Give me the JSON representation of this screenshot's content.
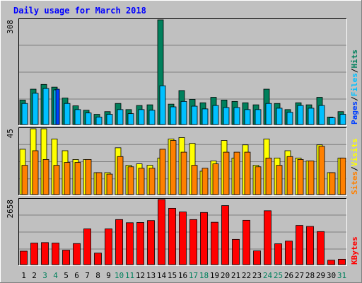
{
  "title": "Daily usage for March 2018",
  "colors": {
    "background": "#C0C0C0",
    "border_dark": "#808080",
    "border_light": "#FFFFFF",
    "plot_bg": "#C0C0C0",
    "title": "#0000FF",
    "hits": "#00805C",
    "files": "#00C0FF",
    "pages": "#0040FF",
    "visits": "#FFFF00",
    "sites": "#FF8000",
    "kbytes": "#FF0000",
    "weekend_label": "#00805C",
    "weekday_label": "#000000"
  },
  "chart_data": [
    {
      "type": "bar",
      "name": "hits-files-pages",
      "ymax_label": "308",
      "ylim": [
        0,
        308
      ],
      "legend": [
        {
          "label": "Pages",
          "color": "#0040FF"
        },
        {
          "label": "/",
          "color": "#000000"
        },
        {
          "label": "Files",
          "color": "#00C0FF"
        },
        {
          "label": "/",
          "color": "#000000"
        },
        {
          "label": "Hits",
          "color": "#00805C"
        }
      ],
      "series": [
        {
          "name": "Hits",
          "values": [
            72,
            104,
            118,
            110,
            78,
            55,
            42,
            30,
            38,
            62,
            44,
            56,
            58,
            308,
            60,
            100,
            74,
            64,
            80,
            72,
            68,
            64,
            58,
            104,
            62,
            44,
            64,
            58,
            80,
            22,
            38
          ]
        },
        {
          "name": "Files",
          "values": [
            62,
            92,
            106,
            102,
            62,
            44,
            34,
            22,
            30,
            44,
            32,
            44,
            42,
            114,
            52,
            68,
            54,
            46,
            56,
            50,
            50,
            44,
            44,
            62,
            48,
            36,
            56,
            48,
            56,
            20,
            30
          ]
        },
        {
          "name": "Pages",
          "values": [
            0,
            0,
            0,
            104,
            0,
            0,
            0,
            0,
            0,
            0,
            0,
            0,
            0,
            0,
            0,
            0,
            0,
            0,
            0,
            0,
            0,
            0,
            0,
            0,
            0,
            0,
            0,
            0,
            0,
            0,
            0
          ]
        }
      ]
    },
    {
      "type": "bar",
      "name": "visits-sites",
      "ymax_label": "45",
      "ylim": [
        0,
        45
      ],
      "legend": [
        {
          "label": "Sites",
          "color": "#FF8000"
        },
        {
          "label": "/",
          "color": "#000000"
        },
        {
          "label": "Visits",
          "color": "#FFFF00"
        }
      ],
      "series": [
        {
          "name": "Visits",
          "values": [
            31,
            45,
            45,
            38,
            30,
            24,
            24,
            15,
            15,
            32,
            20,
            21,
            20,
            25,
            38,
            39,
            35,
            16,
            23,
            37,
            25,
            34,
            20,
            38,
            25,
            30,
            25,
            23,
            34,
            15,
            25
          ]
        },
        {
          "name": "Sites",
          "values": [
            20,
            30,
            24,
            20,
            22,
            22,
            24,
            15,
            14,
            26,
            19,
            18,
            18,
            31,
            37,
            29,
            20,
            18,
            21,
            29,
            29,
            29,
            19,
            25,
            20,
            26,
            24,
            23,
            33,
            15,
            25
          ]
        }
      ]
    },
    {
      "type": "bar",
      "name": "kbytes",
      "ymax_label": "2658",
      "ylim": [
        0,
        2658
      ],
      "legend": [
        {
          "label": "KBytes",
          "color": "#FF0000"
        }
      ],
      "series": [
        {
          "name": "KBytes",
          "values": [
            550,
            880,
            900,
            880,
            590,
            860,
            1460,
            470,
            1460,
            1840,
            1710,
            1720,
            1800,
            2658,
            2300,
            2150,
            1840,
            2130,
            1730,
            2410,
            1030,
            1810,
            560,
            2200,
            850,
            960,
            1600,
            1560,
            1350,
            180,
            220
          ]
        }
      ]
    }
  ],
  "days": [
    "1",
    "2",
    "3",
    "4",
    "5",
    "6",
    "7",
    "8",
    "9",
    "10",
    "11",
    "12",
    "13",
    "14",
    "15",
    "16",
    "17",
    "18",
    "19",
    "20",
    "21",
    "22",
    "23",
    "24",
    "25",
    "26",
    "27",
    "28",
    "29",
    "30",
    "31"
  ],
  "weekend_days": [
    3,
    4,
    10,
    11,
    17,
    18,
    24,
    25,
    31
  ]
}
